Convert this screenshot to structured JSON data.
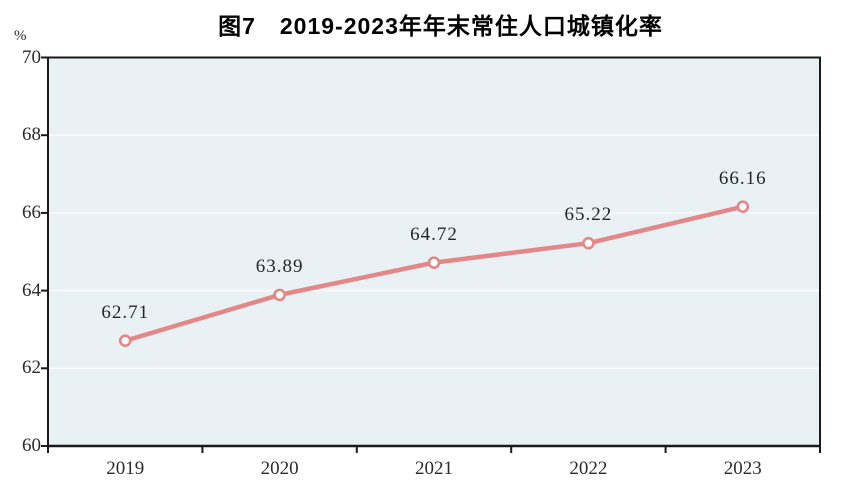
{
  "title": "图7　2019-2023年年末常住人口城镇化率",
  "unit_label": "%",
  "colors": {
    "line": "#e38788",
    "marker_fill": "#ffffff",
    "plot_background": "#e9f1f5",
    "gridline": "#f9fbfc",
    "axis": "#1a1a1a",
    "text": "#2b2b2b"
  },
  "chart_data": {
    "type": "line",
    "title": "图7　2019-2023年年末常住人口城镇化率",
    "categories": [
      "2019",
      "2020",
      "2021",
      "2022",
      "2023"
    ],
    "values": [
      62.71,
      63.89,
      64.72,
      65.22,
      66.16
    ],
    "point_labels": [
      "62.71",
      "63.89",
      "64.72",
      "65.22",
      "66.16"
    ],
    "xlabel": "",
    "ylabel": "%",
    "ylim": [
      60,
      70
    ],
    "yticks": [
      70,
      68,
      66,
      64,
      62,
      60
    ],
    "grid": true,
    "legend_position": "none",
    "marker": "open-circle"
  }
}
